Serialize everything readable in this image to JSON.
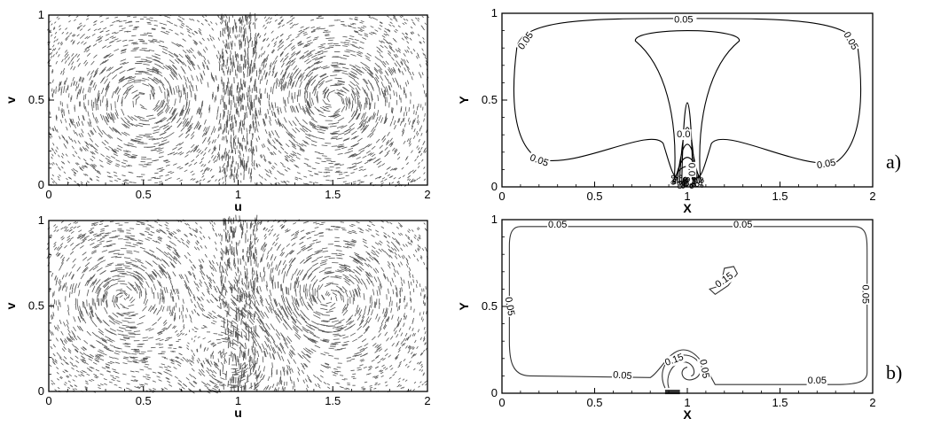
{
  "panel_labels": [
    "a)",
    "b)"
  ],
  "chart_data": [
    {
      "type": "vector-field",
      "panel": "a",
      "position": "left",
      "xlabel": "u",
      "ylabel": "v",
      "xlim": [
        0,
        2
      ],
      "ylim": [
        0,
        1
      ],
      "xticks": [
        "0",
        "0.5",
        "1",
        "1.5",
        "2"
      ],
      "yticks": [
        "0",
        "0.5",
        "1"
      ],
      "vortex_centers": [
        [
          0.5,
          0.5
        ],
        [
          1.5,
          0.5
        ]
      ],
      "color": "#555555"
    },
    {
      "type": "contour",
      "panel": "a",
      "position": "right",
      "xlabel": "X",
      "ylabel": "Y",
      "xlim": [
        0,
        2
      ],
      "ylim": [
        0,
        1
      ],
      "xticks": [
        "0",
        "0.5",
        "1",
        "1.5",
        "2"
      ],
      "yticks": [
        "0",
        "0.5",
        "1"
      ],
      "contour_labels": [
        {
          "text": "0.05",
          "x": 0.98,
          "y": 0.96,
          "rot": 0
        },
        {
          "text": "0.05",
          "x": 0.13,
          "y": 0.84,
          "rot": -55
        },
        {
          "text": "0.05",
          "x": 1.88,
          "y": 0.84,
          "rot": 60
        },
        {
          "text": "0.05",
          "x": 0.2,
          "y": 0.15,
          "rot": 20
        },
        {
          "text": "0.05",
          "x": 1.75,
          "y": 0.13,
          "rot": -10
        },
        {
          "text": "0.0",
          "x": 0.98,
          "y": 0.3,
          "rot": 0
        },
        {
          "text": "0.0",
          "x": 1.02,
          "y": 0.1,
          "rot": 90
        }
      ],
      "color": "#000000"
    },
    {
      "type": "vector-field",
      "panel": "b",
      "position": "left",
      "xlabel": "u",
      "ylabel": "v",
      "xlim": [
        0,
        2
      ],
      "ylim": [
        0,
        1
      ],
      "xticks": [
        "0",
        "0.5",
        "1",
        "1.5",
        "2"
      ],
      "yticks": [
        "0",
        "0.5",
        "1"
      ],
      "vortex_centers": [
        [
          0.4,
          0.55
        ],
        [
          1.48,
          0.55
        ],
        [
          0.98,
          0.2
        ]
      ],
      "color": "#555555"
    },
    {
      "type": "contour",
      "panel": "b",
      "position": "right",
      "xlabel": "X",
      "ylabel": "Y",
      "xlim": [
        0,
        2
      ],
      "ylim": [
        0,
        1
      ],
      "xticks": [
        "0",
        "0.5",
        "1",
        "1.5",
        "2"
      ],
      "yticks": [
        "0",
        "0.5",
        "1"
      ],
      "contour_labels": [
        {
          "text": "0.05",
          "x": 0.3,
          "y": 0.97,
          "rot": 0
        },
        {
          "text": "0.05",
          "x": 1.3,
          "y": 0.97,
          "rot": 0
        },
        {
          "text": "0.05",
          "x": 1.96,
          "y": 0.57,
          "rot": 90
        },
        {
          "text": "0.05",
          "x": 0.04,
          "y": 0.5,
          "rot": 80
        },
        {
          "text": "0.15",
          "x": 1.2,
          "y": 0.65,
          "rot": -35
        },
        {
          "text": "0.15",
          "x": 0.93,
          "y": 0.19,
          "rot": -20
        },
        {
          "text": "0.05",
          "x": 0.65,
          "y": 0.1,
          "rot": 5
        },
        {
          "text": "0.05",
          "x": 1.7,
          "y": 0.07,
          "rot": 0
        },
        {
          "text": "0.05",
          "x": 1.09,
          "y": 0.14,
          "rot": 80
        }
      ],
      "color": "#333333"
    }
  ]
}
